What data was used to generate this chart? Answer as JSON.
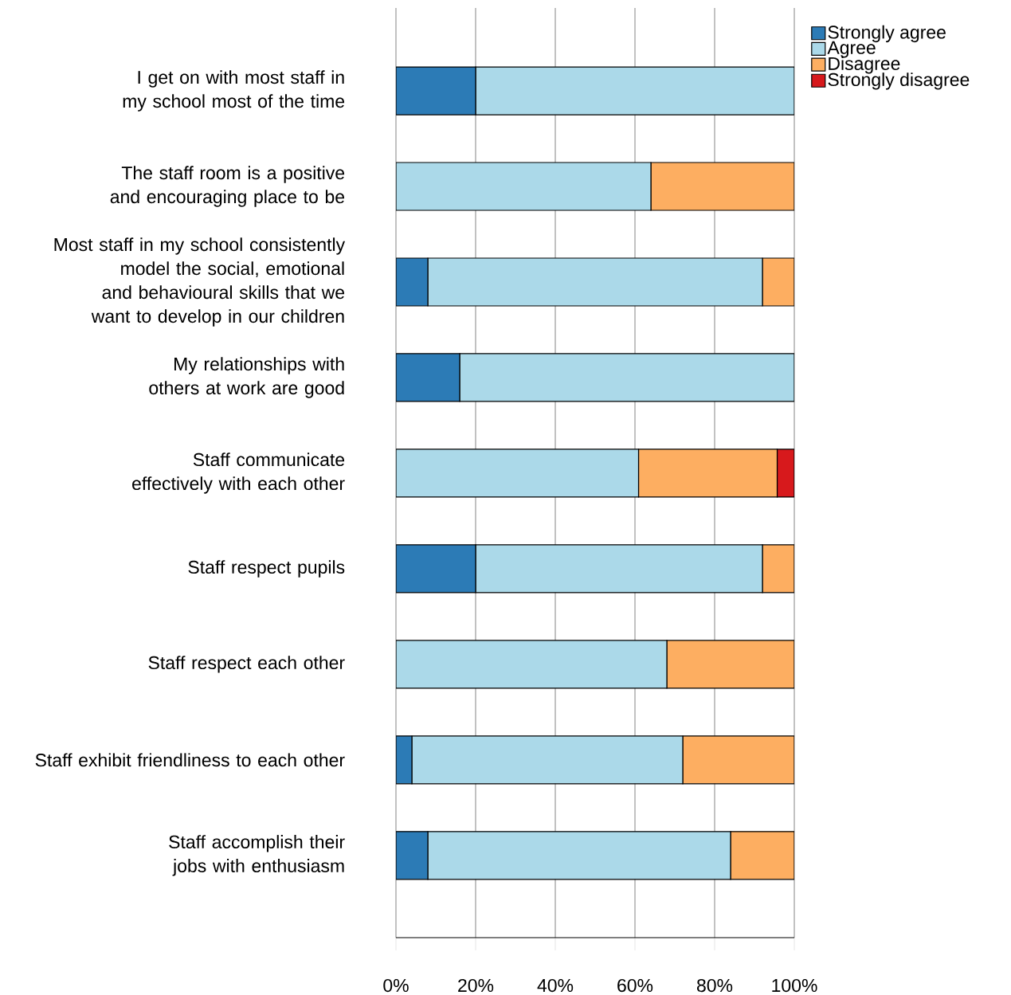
{
  "chart_data": {
    "type": "bar",
    "orientation": "horizontal",
    "stacked": true,
    "categories": [
      "I get on with most staff in my school most of the time",
      "The staff room is a positive and encouraging place to be",
      "Most staff in my school consistently model the social, emotional and behavioural skills that we want to develop in our children",
      "My relationships with others at work are good",
      "Staff communicate effectively with each other",
      "Staff respect pupils",
      "Staff respect each other",
      "Staff exhibit friendliness to each other",
      "Staff accomplish their jobs with enthusiasm"
    ],
    "series": [
      {
        "name": "Strongly agree",
        "color": "#2c7bb6",
        "values": [
          20,
          0,
          8,
          16,
          0,
          20,
          0,
          4,
          8
        ]
      },
      {
        "name": "Agree",
        "color": "#abd9e9",
        "values": [
          80,
          64,
          84,
          84,
          60.9,
          72,
          68,
          68,
          76
        ]
      },
      {
        "name": "Disagree",
        "color": "#fdae61",
        "values": [
          0,
          36,
          8,
          0,
          34.8,
          8,
          32,
          28,
          16
        ]
      },
      {
        "name": "Strongly disagree",
        "color": "#d7191c",
        "values": [
          0,
          0,
          0,
          0,
          4.3,
          0,
          0,
          0,
          0
        ]
      }
    ],
    "xlim": [
      0,
      100
    ],
    "xticks": [
      {
        "value": 0,
        "label": "0%"
      },
      {
        "value": 20,
        "label": "20%"
      },
      {
        "value": 40,
        "label": "40%"
      },
      {
        "value": 60,
        "label": "60%"
      },
      {
        "value": 80,
        "label": "80%"
      },
      {
        "value": 100,
        "label": "100%"
      }
    ],
    "grid": "x",
    "legend": "top right"
  }
}
